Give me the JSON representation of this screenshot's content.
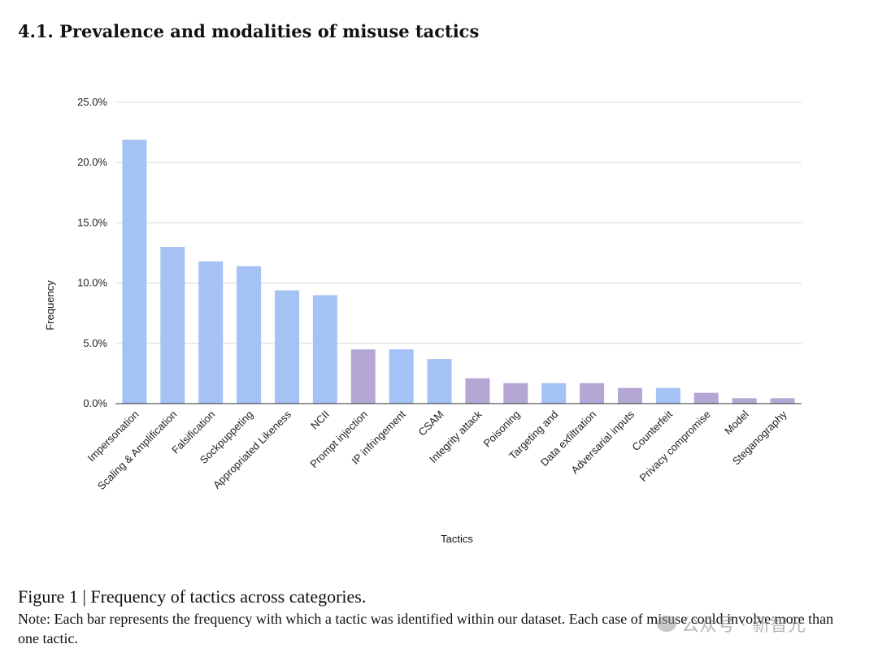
{
  "section": {
    "title": "4.1.  Prevalence and modalities of misuse tactics"
  },
  "chart_data": {
    "type": "bar",
    "title": "",
    "xlabel": "Tactics",
    "ylabel": "Frequency",
    "ylim": [
      0,
      25
    ],
    "yticks": [
      0,
      5,
      10,
      15,
      20,
      25
    ],
    "ytick_labels": [
      "0.0%",
      "5.0%",
      "10.0%",
      "15.0%",
      "20.0%",
      "25.0%"
    ],
    "grid": "horizontal",
    "categories": [
      "Impersonation",
      "Scaling & Amplification",
      "Falsification",
      "Sockpuppeting",
      "Appropriated Likeness",
      "NCII",
      "Prompt injection",
      "IP infringement",
      "CSAM",
      "Integrity attack",
      "Poisoning",
      "Targeting and",
      "Data exfiltration",
      "Adversarial inputs",
      "Counterfeit",
      "Privacy compromise",
      "Model",
      "Steganography"
    ],
    "values": [
      21.9,
      13.0,
      11.8,
      11.4,
      9.4,
      9.0,
      4.5,
      4.5,
      3.7,
      2.1,
      1.7,
      1.7,
      1.7,
      1.3,
      1.3,
      0.9,
      0.45,
      0.45
    ],
    "colors": [
      "#a4c2f4",
      "#a4c2f4",
      "#a4c2f4",
      "#a4c2f4",
      "#a4c2f4",
      "#a4c2f4",
      "#b4a7d6",
      "#a4c2f4",
      "#a4c2f4",
      "#b4a7d6",
      "#b4a7d6",
      "#a4c2f4",
      "#b4a7d6",
      "#b4a7d6",
      "#a4c2f4",
      "#b4a7d6",
      "#b4a7d6",
      "#b4a7d6"
    ]
  },
  "caption": {
    "title": "Figure 1 | Frequency of tactics across categories.",
    "note": "Note: Each bar represents the frequency with which a tactic was identified within our dataset. Each case of misuse could involve more than one tactic."
  },
  "watermark": {
    "text": "公众号 · 新智元"
  }
}
